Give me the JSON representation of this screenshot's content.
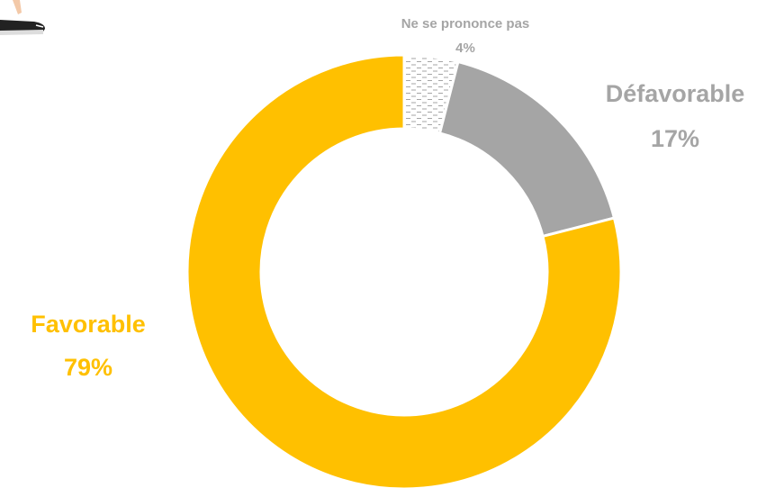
{
  "chart_data": {
    "type": "donut",
    "categories": [
      "Ne se prononce pas",
      "Défavorable",
      "Favorable"
    ],
    "values": [
      4,
      17,
      79
    ],
    "value_labels": [
      "4%",
      "17%",
      "79%"
    ],
    "colors": [
      "#a5a5a5",
      "#a5a5a5",
      "#ffc000"
    ],
    "patterns": [
      "dashes",
      "solid",
      "solid"
    ]
  }
}
